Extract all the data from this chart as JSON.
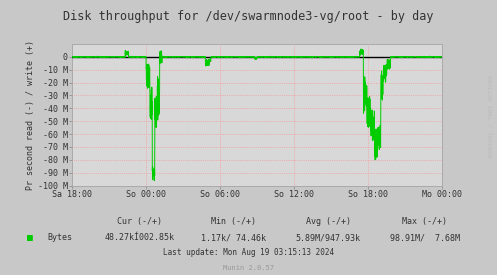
{
  "title": "Disk throughput for /dev/swarmnode3-vg/root - by day",
  "ylabel": "Pr second read (-) / write (+)",
  "bg_color": "#c8c8c8",
  "plot_bg_color": "#d8d8d8",
  "grid_color": "#ff8888",
  "line_color": "#00cc00",
  "zero_line_color": "#000000",
  "border_color": "#aaaaaa",
  "title_color": "#444444",
  "ytick_labels": [
    "0",
    "-10 M",
    "-20 M",
    "-30 M",
    "-40 M",
    "-50 M",
    "-60 M",
    "-70 M",
    "-80 M",
    "-90 M",
    "-100 M"
  ],
  "xtick_labels": [
    "Sa 18:00",
    "So 00:00",
    "So 06:00",
    "So 12:00",
    "So 18:00",
    "Mo 00:00"
  ],
  "legend_label": "Bytes",
  "legend_color": "#00cc00",
  "cur_label": "Cur (-/+)",
  "cur_value": "48.27kÍ002.85k",
  "min_label": "Min (-/+)",
  "min_value": "1.17k/ 74.46k",
  "avg_label": "Avg (-/+)",
  "avg_value": "5.89M/947.93k",
  "max_label": "Max (-/+)",
  "max_value": "98.91M/  7.68M",
  "last_update": "Last update: Mon Aug 19 03:15:13 2024",
  "munin_version": "Munin 2.0.57",
  "watermark": "RRDTOOL / TOBI OETIKER"
}
